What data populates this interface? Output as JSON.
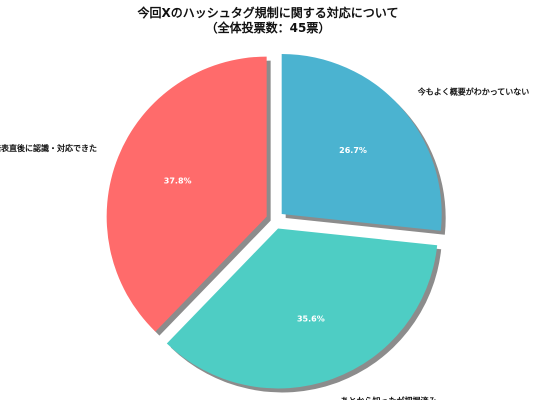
{
  "chart_data": {
    "type": "pie",
    "title_lines": [
      "今回Xのハッシュタグ規制に関する対応について",
      "（全体投票数：45票）"
    ],
    "start_angle_deg": 90,
    "direction": "clockwise",
    "explode": true,
    "shadow": true,
    "slices": [
      {
        "label": "今もよく概要がわかっていない",
        "value": 26.7,
        "value_label": "26.7%",
        "color": "#4BB3D0"
      },
      {
        "label": "あとから知ったが把握済み",
        "value": 35.6,
        "value_label": "35.6%",
        "color": "#4ECDC4"
      },
      {
        "label": "発表直後に認識・対応できた",
        "value": 37.8,
        "value_label": "37.8%",
        "color": "#FF6B6B"
      }
    ]
  }
}
